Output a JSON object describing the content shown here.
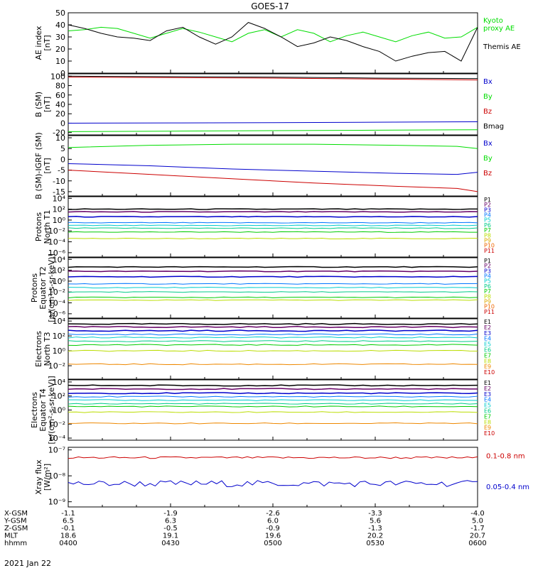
{
  "title": "GOES-17",
  "footer_date": "2021 Jan 22",
  "orbit": {
    "labels": [
      "X-GSM",
      "Y-GSM",
      "Z-GSM",
      "MLT",
      "hhmm"
    ],
    "rows": [
      [
        "-1.1",
        "-1.9",
        "-2.6",
        "-3.3",
        "-4.0"
      ],
      [
        "6.5",
        "6.3",
        "6.0",
        "5.6",
        "5.0"
      ],
      [
        "-0.1",
        "-0.5",
        "-0.9",
        "-1.3",
        "-1.7"
      ],
      [
        "18.6",
        "19.1",
        "19.6",
        "20.2",
        "20.7"
      ],
      [
        "0400",
        "0430",
        "0500",
        "0530",
        "0600"
      ]
    ]
  },
  "colors": {
    "black": "#000000",
    "green": "#00dd00",
    "blue": "#0000cc",
    "red": "#cc0000",
    "P": [
      "#000000",
      "#660066",
      "#0000cc",
      "#0077ff",
      "#00cccc",
      "#00cc88",
      "#00cc00",
      "#bbdd00",
      "#ddaa00",
      "#ee6600",
      "#cc0000"
    ],
    "E": [
      "#000000",
      "#660066",
      "#0000cc",
      "#0077ff",
      "#00cccc",
      "#00cc88",
      "#00cc00",
      "#bbdd00",
      "#ee8800",
      "#cc0000",
      "#cc0000"
    ]
  },
  "chart_data": [
    {
      "type": "line",
      "ylabel": "AE index\n[nT]",
      "yticks": [
        "50",
        "40",
        "30",
        "20",
        "10",
        "0"
      ],
      "ylim": [
        0,
        50
      ],
      "x_range": [
        "0400",
        "0600"
      ],
      "series": [
        {
          "name": "Kyoto\nproxy AE",
          "color": "#00dd00",
          "x": [
            0,
            4,
            8,
            12,
            16,
            20,
            24,
            28,
            32,
            36,
            40,
            44,
            48,
            52,
            56,
            60,
            64,
            68,
            72,
            76,
            80,
            84,
            88,
            92,
            96,
            100
          ],
          "y": [
            35,
            36,
            38,
            37,
            33,
            29,
            33,
            37,
            34,
            30,
            26,
            33,
            36,
            30,
            36,
            33,
            26,
            31,
            34,
            30,
            26,
            31,
            34,
            29,
            30,
            38
          ]
        },
        {
          "name": "Themis AE",
          "color": "#000000",
          "x": [
            0,
            4,
            8,
            12,
            16,
            20,
            24,
            28,
            32,
            36,
            40,
            44,
            48,
            52,
            56,
            60,
            64,
            68,
            72,
            76,
            80,
            84,
            88,
            92,
            96,
            100
          ],
          "y": [
            40,
            37,
            33,
            30,
            29,
            27,
            35,
            38,
            30,
            24,
            30,
            42,
            37,
            30,
            22,
            25,
            30,
            27,
            22,
            18,
            10,
            14,
            17,
            18,
            10,
            38
          ]
        }
      ]
    },
    {
      "type": "line",
      "ylabel": "B (SM)\n[nT]",
      "yticks": [
        "100",
        "80",
        "60",
        "40",
        "20",
        "0",
        "-20"
      ],
      "ylim": [
        -25,
        105
      ],
      "series": [
        {
          "name": "Bx",
          "color": "#0000cc",
          "x": [
            0,
            25,
            50,
            75,
            100
          ],
          "y": [
            0,
            0.5,
            1,
            2,
            3
          ]
        },
        {
          "name": "By",
          "color": "#00dd00",
          "x": [
            0,
            25,
            50,
            75,
            100
          ],
          "y": [
            -18,
            -17,
            -16,
            -15,
            -14
          ]
        },
        {
          "name": "Bz",
          "color": "#cc0000",
          "x": [
            0,
            25,
            50,
            75,
            100
          ],
          "y": [
            98,
            97,
            96,
            94,
            92
          ]
        },
        {
          "name": "Bmag",
          "color": "#000000",
          "x": [
            0,
            25,
            50,
            75,
            100
          ],
          "y": [
            100,
            99,
            98,
            96,
            95
          ]
        }
      ]
    },
    {
      "type": "line",
      "ylabel": "B (SM)-IGRF (SM)\n[nT]",
      "yticks": [
        "10",
        "5",
        "0",
        "-5",
        "-10",
        "-15"
      ],
      "ylim": [
        -17,
        11
      ],
      "series": [
        {
          "name": "Bx",
          "color": "#0000cc",
          "x": [
            0,
            20,
            40,
            60,
            80,
            95,
            100
          ],
          "y": [
            -2,
            -3,
            -4.5,
            -5.5,
            -6.5,
            -7,
            -6
          ]
        },
        {
          "name": "By",
          "color": "#00dd00",
          "x": [
            0,
            20,
            40,
            60,
            80,
            95,
            100
          ],
          "y": [
            5.5,
            6.5,
            7,
            7,
            6.5,
            6,
            5
          ]
        },
        {
          "name": "Bz",
          "color": "#cc0000",
          "x": [
            0,
            20,
            40,
            60,
            80,
            95,
            100
          ],
          "y": [
            -5,
            -7,
            -9,
            -11,
            -12.5,
            -13.5,
            -15
          ]
        }
      ]
    },
    {
      "type": "line",
      "log": true,
      "ylabel": "Protons\nNorth T1",
      "yticks": [
        "10⁴",
        "10²",
        "10⁰",
        "10⁻²",
        "10⁻⁴",
        "10⁻⁶"
      ],
      "ylim_exp": [
        -6.8,
        4.3
      ],
      "channels": [
        "P1",
        "P2",
        "P3",
        "P4",
        "P5",
        "P6",
        "P7",
        "P8",
        "P9",
        "P10",
        "P11"
      ],
      "levels": [
        2.0,
        1.5,
        0.6,
        -0.5,
        -1.0,
        -1.5,
        -2.2,
        -3.4,
        null,
        null,
        null
      ]
    },
    {
      "type": "line",
      "log": true,
      "ylabel": "Protons\nEquator T2\n[p/(cm²-s-sr-keV)]",
      "yticks": [
        "10⁴",
        "10²",
        "10⁰",
        "10⁻²",
        "10⁻⁴",
        "10⁻⁶"
      ],
      "ylim_exp": [
        -6.8,
        4.3
      ],
      "channels": [
        "P1",
        "P2",
        "P3",
        "P4",
        "P5",
        "P6",
        "P7",
        "P8",
        "P9",
        "P10",
        "P11"
      ],
      "levels": [
        2.6,
        1.8,
        0.8,
        -0.5,
        -1.2,
        -2.0,
        -3.0,
        -3.5,
        null,
        null,
        null
      ]
    },
    {
      "type": "line",
      "log": true,
      "ylabel": "Electrons\nNorth T3",
      "yticks": [
        "10⁴",
        "10²",
        "10⁰",
        "10⁻²"
      ],
      "ylim_exp": [
        -3.8,
        4.3
      ],
      "channels": [
        "E1",
        "E2",
        "E3",
        "E4",
        "E5",
        "E6",
        "E7",
        "E8",
        "E9",
        "E10"
      ],
      "levels": [
        3.6,
        3.2,
        2.7,
        2.2,
        1.8,
        1.3,
        0.8,
        0.0,
        -1.8,
        null
      ]
    },
    {
      "type": "line",
      "log": true,
      "ylabel": "Electrons\nEquator T4\n[e/(cm²-s-sr-keV)]",
      "yticks": [
        "10⁴",
        "10²",
        "10⁰",
        "10⁻²",
        "10⁻⁴"
      ],
      "ylim_exp": [
        -4.3,
        4.3
      ],
      "channels": [
        "E1",
        "E2",
        "E3",
        "E4",
        "E5",
        "E6",
        "E7",
        "E8",
        "E9",
        "E10"
      ],
      "levels": [
        3.5,
        3.0,
        2.4,
        1.9,
        1.4,
        0.9,
        0.5,
        -0.3,
        -1.9,
        null
      ]
    },
    {
      "type": "line",
      "log": true,
      "ylabel": "Xray flux\n[W/m²]",
      "yticks": [
        "10⁻⁷",
        "10⁻⁸",
        "10⁻⁹"
      ],
      "ylim_exp": [
        -9.2,
        -6.9
      ],
      "series": [
        {
          "name": "0.1-0.8 nm",
          "color": "#cc0000",
          "level": -7.3
        },
        {
          "name": "0.05-0.4 nm",
          "color": "#0000cc",
          "level": -8.3
        }
      ]
    }
  ]
}
